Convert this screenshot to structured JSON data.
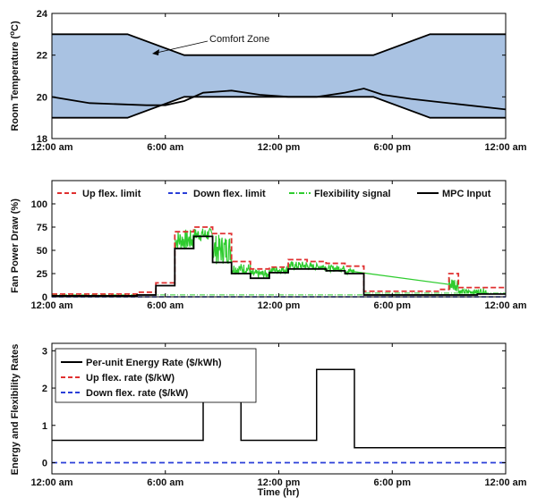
{
  "chart_data": [
    {
      "type": "area",
      "ylabel": "Room Temperature (°C)",
      "ylabel_parts": [
        "Room Temperature (",
        "o",
        "C)"
      ],
      "ylim": [
        18,
        24
      ],
      "yticks": [
        "18",
        "20",
        "22",
        "24"
      ],
      "xlim": [
        0,
        24
      ],
      "xticks": [
        "12:00 am",
        "6:00 am",
        "12:00 pm",
        "6:00 pm",
        "12:00 am"
      ],
      "annotation": "Comfort Zone",
      "band_color": "#a9c2e2",
      "series": [
        {
          "role": "upper-bound",
          "x": [
            0,
            4,
            7,
            17,
            20,
            24
          ],
          "y": [
            23,
            23,
            22,
            22,
            23,
            23
          ]
        },
        {
          "role": "lower-bound",
          "x": [
            0,
            4,
            7,
            17,
            20,
            24
          ],
          "y": [
            19,
            19,
            20,
            20,
            19,
            19
          ]
        },
        {
          "role": "temperature",
          "x": [
            0,
            2,
            5,
            6,
            7,
            8,
            9.5,
            11,
            12.5,
            14,
            15.5,
            16.5,
            17.5,
            19,
            21,
            24
          ],
          "y": [
            20,
            19.7,
            19.6,
            19.6,
            19.8,
            20.2,
            20.3,
            20.1,
            20.0,
            20.0,
            20.2,
            20.4,
            20.1,
            19.9,
            19.7,
            19.4
          ]
        }
      ]
    },
    {
      "type": "line",
      "ylabel": "Fan Power Draw (%)",
      "ylim": [
        0,
        125
      ],
      "yticks": [
        "0",
        "25",
        "50",
        "75",
        "100"
      ],
      "xlim": [
        0,
        24
      ],
      "xticks": [
        "12:00 am",
        "6:00 am",
        "12:00 pm",
        "6:00 pm",
        "12:00 am"
      ],
      "legend": [
        "Up flex. limit",
        "Down flex. limit",
        "Flexibility signal",
        "MPC Input"
      ],
      "colors": {
        "up": "#e03030",
        "down": "#2a3fd8",
        "signal": "#2ecc2e",
        "mpc": "#000000"
      },
      "mpc_steps": [
        [
          0,
          1
        ],
        [
          4.5,
          2
        ],
        [
          5.5,
          12
        ],
        [
          6.5,
          52
        ],
        [
          7.5,
          65
        ],
        [
          8.5,
          37
        ],
        [
          9.5,
          25
        ],
        [
          10.5,
          20
        ],
        [
          11.5,
          26
        ],
        [
          12.5,
          30
        ],
        [
          13.5,
          30
        ],
        [
          14.5,
          28
        ],
        [
          15.5,
          25
        ],
        [
          16.5,
          2
        ],
        [
          21,
          2
        ],
        [
          22.5,
          3
        ],
        [
          24,
          3
        ]
      ],
      "up_steps": [
        [
          0,
          3
        ],
        [
          4.5,
          5
        ],
        [
          5.5,
          15
        ],
        [
          6.5,
          70
        ],
        [
          7.5,
          75
        ],
        [
          8.5,
          68
        ],
        [
          9.5,
          38
        ],
        [
          10.5,
          30
        ],
        [
          11.5,
          32
        ],
        [
          12.5,
          40
        ],
        [
          13.5,
          38
        ],
        [
          14.5,
          36
        ],
        [
          15.5,
          33
        ],
        [
          16.5,
          6
        ],
        [
          19.5,
          6
        ],
        [
          20.5,
          8
        ],
        [
          21,
          25
        ],
        [
          21.5,
          10
        ],
        [
          22.5,
          10
        ],
        [
          24,
          10
        ]
      ],
      "signal_band": [
        [
          6.5,
          50,
          72
        ],
        [
          7.5,
          60,
          74
        ],
        [
          8.5,
          35,
          67
        ],
        [
          9.5,
          24,
          36
        ],
        [
          10.5,
          20,
          29
        ],
        [
          11.5,
          25,
          33
        ],
        [
          12.5,
          29,
          38
        ],
        [
          13.5,
          29,
          36
        ],
        [
          14.5,
          27,
          34
        ],
        [
          15.5,
          24,
          31
        ],
        [
          21,
          6,
          22
        ],
        [
          21.5,
          3,
          8
        ],
        [
          22.5,
          3,
          9
        ]
      ]
    },
    {
      "type": "line",
      "ylabel": "Energy and Flexibility Rates",
      "xlabel": "Time (hr)",
      "ylim": [
        -0.3,
        3.2
      ],
      "yticks": [
        "0",
        "1",
        "2",
        "3"
      ],
      "xlim": [
        0,
        24
      ],
      "xticks": [
        "12:00 am",
        "6:00 am",
        "12:00 pm",
        "6:00 pm",
        "12:00 am"
      ],
      "legend": [
        "Per-unit Energy Rate ($/kWh)",
        "Up flex. rate ($/kW)",
        "Down flex. rate ($/kW)"
      ],
      "colors": {
        "energy": "#000000",
        "up": "#e03030",
        "down": "#2a3fd8"
      },
      "energy_steps": [
        [
          0,
          0.6
        ],
        [
          8,
          1.7
        ],
        [
          10,
          0.6
        ],
        [
          14,
          2.5
        ],
        [
          16,
          0.4
        ],
        [
          24,
          0.4
        ]
      ],
      "down_value": 0
    }
  ]
}
